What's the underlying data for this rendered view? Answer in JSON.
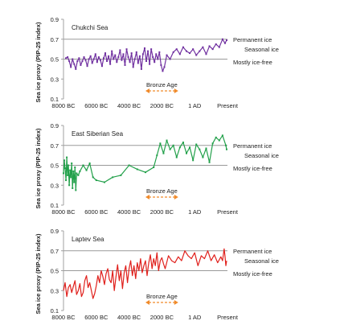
{
  "figure": {
    "ylabel": "Sea ice proxy (PIP-25 index)",
    "x_tick_labels": [
      "8000 BC",
      "6000 BC",
      "4000 BC",
      "2000 BC",
      "1 AD",
      "Present"
    ],
    "zone_labels": [
      "Permanent ice",
      "Seasonal ice",
      "Mostly ice-free"
    ],
    "period_label": "Bronze Age"
  },
  "chart_data": [
    {
      "type": "line",
      "title": "Chukchi Sea",
      "ylabel": "Sea ice proxy (PIP-25 index)",
      "ylim": [
        0.1,
        0.9
      ],
      "yticks": [
        0.1,
        0.3,
        0.5,
        0.7,
        0.9
      ],
      "xticks": [
        "8000 BC",
        "6000 BC",
        "4000 BC",
        "2000 BC",
        "1 AD",
        "Present"
      ],
      "reference_lines": [
        0.5,
        0.7
      ],
      "color": "#7030a0",
      "markers": true,
      "series": [
        {
          "x": [
            -7850,
            -7750,
            -7650,
            -7550,
            -7450,
            -7350,
            -7250,
            -7150,
            -7050,
            -6950,
            -6850,
            -6750,
            -6650,
            -6550,
            -6450,
            -6350,
            -6250,
            -6150,
            -6050,
            -5950,
            -5850,
            -5750,
            -5650,
            -5550,
            -5450,
            -5350,
            -5250,
            -5150,
            -5050,
            -4950,
            -4850,
            -4750,
            -4650,
            -4550,
            -4450,
            -4350,
            -4250,
            -4150,
            -4050,
            -3950,
            -3850,
            -3750,
            -3650,
            -3550,
            -3450,
            -3350,
            -3250,
            -3150,
            -3050,
            -2950,
            -2850,
            -2750,
            -2650,
            -2550,
            -2450,
            -2350,
            -2250,
            -2150,
            -2050,
            -1950,
            -1850,
            -1700,
            -1500,
            -1300,
            -1100,
            -900,
            -700,
            -500,
            -300,
            -100,
            100,
            300,
            500,
            700,
            900,
            1100,
            1300,
            1500,
            1700,
            1850,
            1950
          ],
          "y": [
            0.51,
            0.52,
            0.48,
            0.42,
            0.5,
            0.45,
            0.4,
            0.48,
            0.51,
            0.44,
            0.48,
            0.52,
            0.49,
            0.43,
            0.5,
            0.53,
            0.46,
            0.5,
            0.55,
            0.47,
            0.52,
            0.49,
            0.43,
            0.51,
            0.56,
            0.48,
            0.53,
            0.45,
            0.58,
            0.5,
            0.54,
            0.47,
            0.52,
            0.59,
            0.49,
            0.55,
            0.44,
            0.6,
            0.52,
            0.47,
            0.56,
            0.42,
            0.5,
            0.57,
            0.46,
            0.53,
            0.4,
            0.55,
            0.61,
            0.48,
            0.58,
            0.45,
            0.6,
            0.52,
            0.47,
            0.55,
            0.5,
            0.57,
            0.44,
            0.38,
            0.42,
            0.54,
            0.5,
            0.57,
            0.6,
            0.55,
            0.62,
            0.58,
            0.56,
            0.6,
            0.54,
            0.58,
            0.62,
            0.55,
            0.63,
            0.6,
            0.65,
            0.62,
            0.7,
            0.66,
            0.69
          ]
        }
      ]
    },
    {
      "type": "line",
      "title": "East Siberian Sea",
      "ylabel": "Sea ice proxy (PIP-25 index)",
      "ylim": [
        0.1,
        0.9
      ],
      "yticks": [
        0.1,
        0.3,
        0.5,
        0.7,
        0.9
      ],
      "xticks": [
        "8000 BC",
        "6000 BC",
        "4000 BC",
        "2000 BC",
        "1 AD",
        "Present"
      ],
      "reference_lines": [
        0.5,
        0.7
      ],
      "color": "#22a04a",
      "markers": true,
      "series": [
        {
          "x": [
            -8000,
            -7950,
            -7900,
            -7850,
            -7800,
            -7750,
            -7700,
            -7650,
            -7600,
            -7550,
            -7500,
            -7450,
            -7400,
            -7350,
            -7300,
            -7250,
            -7200,
            -7100,
            -7000,
            -6800,
            -6600,
            -6400,
            -6200,
            -6000,
            -5500,
            -5000,
            -4500,
            -4000,
            -3500,
            -3000,
            -2500,
            -2300,
            -2100,
            -1900,
            -1700,
            -1500,
            -1300,
            -1100,
            -900,
            -700,
            -500,
            -300,
            -100,
            100,
            300,
            500,
            700,
            900,
            1100,
            1300,
            1500,
            1700,
            1900,
            1950
          ],
          "y": [
            0.42,
            0.55,
            0.47,
            0.35,
            0.58,
            0.4,
            0.5,
            0.3,
            0.45,
            0.38,
            0.52,
            0.27,
            0.44,
            0.33,
            0.48,
            0.25,
            0.42,
            0.4,
            0.44,
            0.5,
            0.45,
            0.52,
            0.38,
            0.35,
            0.33,
            0.38,
            0.4,
            0.5,
            0.46,
            0.43,
            0.48,
            0.6,
            0.72,
            0.62,
            0.75,
            0.66,
            0.7,
            0.58,
            0.68,
            0.73,
            0.62,
            0.68,
            0.55,
            0.71,
            0.66,
            0.58,
            0.67,
            0.53,
            0.72,
            0.78,
            0.75,
            0.8,
            0.7,
            0.66
          ]
        }
      ]
    },
    {
      "type": "line",
      "title": "Laptev Sea",
      "ylabel": "Sea ice proxy (PIP-25 index)",
      "ylim": [
        0.1,
        0.9
      ],
      "yticks": [
        0.1,
        0.3,
        0.5,
        0.7,
        0.9
      ],
      "xticks": [
        "8000 BC",
        "6000 BC",
        "4000 BC",
        "2000 BC",
        "1 AD",
        "Present"
      ],
      "reference_lines": [
        0.5,
        0.7
      ],
      "color": "#e0201c",
      "markers": false,
      "series": [
        {
          "x": [
            -8000,
            -7900,
            -7800,
            -7700,
            -7600,
            -7500,
            -7400,
            -7300,
            -7200,
            -7100,
            -7000,
            -6900,
            -6800,
            -6700,
            -6600,
            -6500,
            -6400,
            -6300,
            -6200,
            -6100,
            -6000,
            -5900,
            -5800,
            -5700,
            -5600,
            -5500,
            -5400,
            -5300,
            -5200,
            -5100,
            -5000,
            -4900,
            -4800,
            -4700,
            -4600,
            -4500,
            -4400,
            -4300,
            -4200,
            -4100,
            -4000,
            -3900,
            -3800,
            -3700,
            -3600,
            -3500,
            -3400,
            -3300,
            -3200,
            -3100,
            -3000,
            -2900,
            -2800,
            -2700,
            -2600,
            -2500,
            -2400,
            -2300,
            -2200,
            -2100,
            -2000,
            -1900,
            -1800,
            -1600,
            -1400,
            -1200,
            -1000,
            -800,
            -600,
            -400,
            -200,
            0,
            200,
            400,
            600,
            800,
            1000,
            1200,
            1400,
            1600,
            1700,
            1800,
            1850,
            1900,
            1950
          ],
          "y": [
            0.3,
            0.38,
            0.24,
            0.33,
            0.36,
            0.28,
            0.34,
            0.4,
            0.26,
            0.3,
            0.37,
            0.24,
            0.28,
            0.4,
            0.45,
            0.33,
            0.38,
            0.3,
            0.22,
            0.27,
            0.35,
            0.45,
            0.38,
            0.5,
            0.44,
            0.36,
            0.47,
            0.52,
            0.41,
            0.38,
            0.5,
            0.3,
            0.44,
            0.56,
            0.4,
            0.5,
            0.32,
            0.48,
            0.55,
            0.38,
            0.52,
            0.6,
            0.45,
            0.55,
            0.42,
            0.58,
            0.5,
            0.62,
            0.48,
            0.55,
            0.6,
            0.45,
            0.58,
            0.66,
            0.52,
            0.62,
            0.55,
            0.68,
            0.5,
            0.6,
            0.63,
            0.57,
            0.52,
            0.65,
            0.6,
            0.58,
            0.64,
            0.6,
            0.7,
            0.65,
            0.62,
            0.68,
            0.55,
            0.65,
            0.62,
            0.7,
            0.6,
            0.66,
            0.58,
            0.64,
            0.6,
            0.72,
            0.65,
            0.55,
            0.6
          ]
        }
      ]
    }
  ]
}
